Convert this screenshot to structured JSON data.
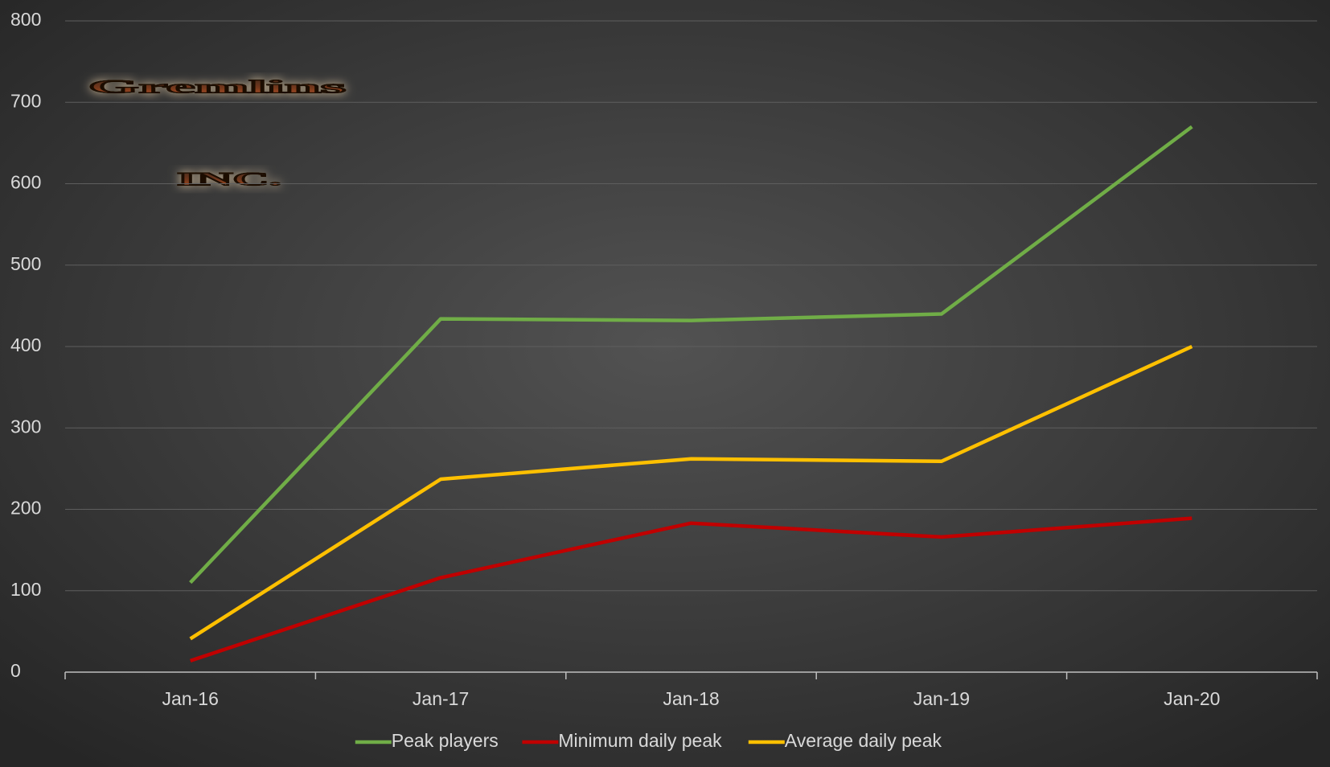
{
  "chart_data": {
    "type": "line",
    "logo": [
      "Gremlins",
      "INC."
    ],
    "categories": [
      "Jan-16",
      "Jan-17",
      "Jan-18",
      "Jan-19",
      "Jan-20"
    ],
    "series": [
      {
        "name": "Peak players",
        "color": "#70ad47",
        "values": [
          110,
          434,
          432,
          440,
          670
        ]
      },
      {
        "name": "Minimum daily peak",
        "color": "#c00000",
        "values": [
          14,
          116,
          183,
          166,
          189
        ]
      },
      {
        "name": "Average daily peak",
        "color": "#ffc000",
        "values": [
          41,
          237,
          262,
          259,
          400
        ]
      }
    ],
    "ylim": [
      0,
      800
    ],
    "yticks": [
      0,
      100,
      200,
      300,
      400,
      500,
      600,
      700,
      800
    ],
    "grid": true,
    "legend": "bottom"
  }
}
